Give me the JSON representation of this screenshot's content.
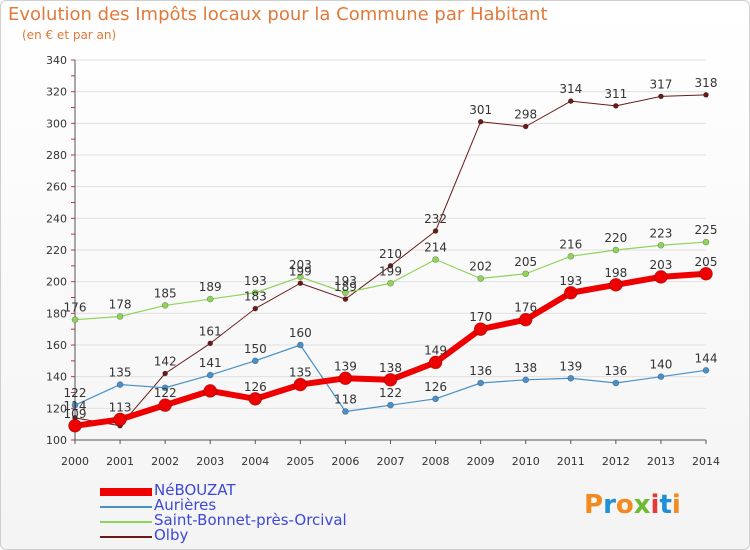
{
  "header": {
    "title": "Evolution des Impôts locaux pour la Commune par Habitant",
    "subtitle": "(en € et par an)"
  },
  "colors": {
    "title": "#e07a3a",
    "axis_text": "#333333",
    "grid": "#e0e0e0",
    "tick_red": "#cc3333",
    "legend_text": "#3d49d6"
  },
  "logo": {
    "text": "Proxiti",
    "letter_colors": [
      "#f28a1e",
      "#1f8fd6",
      "#f28a1e",
      "#6cbc2f",
      "#e53935",
      "#1f8fd6",
      "#f28a1e"
    ]
  },
  "chart_data": {
    "type": "line",
    "title": "Evolution des Impôts locaux pour la Commune par Habitant",
    "subtitle": "(en € et par an)",
    "x": [
      "2000",
      "2001",
      "2002",
      "2003",
      "2004",
      "2005",
      "2006",
      "2007",
      "2008",
      "2009",
      "2010",
      "2011",
      "2012",
      "2013",
      "2014"
    ],
    "ylim": [
      100,
      340
    ],
    "yticks": [
      100,
      120,
      140,
      160,
      180,
      200,
      220,
      240,
      260,
      280,
      300,
      320,
      340
    ],
    "grid": "horizontal",
    "legend_position": "bottom-left",
    "series": [
      {
        "name": "Olby",
        "color": "#6b1a1a",
        "width": 1,
        "marker": 2.5,
        "values": [
          114,
          109,
          142,
          161,
          183,
          199,
          189,
          210,
          232,
          301,
          298,
          314,
          311,
          317,
          318
        ]
      },
      {
        "name": "Saint-Bonnet-près-Orcival",
        "color": "#8fd45a",
        "width": 1.2,
        "marker": 3,
        "values": [
          176,
          178,
          185,
          189,
          193,
          203,
          193,
          199,
          214,
          202,
          205,
          216,
          220,
          223,
          225
        ]
      },
      {
        "name": "Aurières",
        "color": "#4a90c8",
        "width": 1.2,
        "marker": 3,
        "values": [
          122,
          135,
          133,
          141,
          150,
          160,
          118,
          122,
          126,
          136,
          138,
          139,
          136,
          140,
          144
        ]
      },
      {
        "name": "NéBOUZAT",
        "color": "#ee0000",
        "width": 6,
        "marker": 6.5,
        "values": [
          109,
          113,
          122,
          131,
          126,
          135,
          139,
          138,
          149,
          170,
          176,
          193,
          198,
          203,
          205
        ]
      }
    ],
    "data_labels": [
      {
        "series": "Olby",
        "labels": [
          "114",
          "",
          "142",
          "161",
          "183",
          "199",
          "189",
          "210",
          "232",
          "301",
          "298",
          "314",
          "311",
          "317",
          "318"
        ]
      },
      {
        "series": "Saint-Bonnet-près-Orcival",
        "labels": [
          "176",
          "178",
          "185",
          "189",
          "193",
          "203",
          "193",
          "199",
          "214",
          "202",
          "205",
          "216",
          "220",
          "223",
          "225"
        ]
      },
      {
        "series": "Aurières",
        "labels": [
          "122",
          "135",
          "",
          "141",
          "150",
          "160",
          "118",
          "122",
          "126",
          "136",
          "138",
          "139",
          "136",
          "140",
          "144"
        ]
      },
      {
        "series": "NéBOUZAT",
        "labels": [
          "109",
          "113",
          "122",
          "",
          "126",
          "135",
          "139",
          "138",
          "149",
          "170",
          "176",
          "193",
          "198",
          "203",
          "205"
        ]
      }
    ]
  },
  "legend": [
    {
      "label": "NéBOUZAT",
      "color": "#ee0000",
      "thickness": 8
    },
    {
      "label": "Aurières",
      "color": "#4a90c8",
      "thickness": 2
    },
    {
      "label": "Saint-Bonnet-près-Orcival",
      "color": "#8fd45a",
      "thickness": 2
    },
    {
      "label": "Olby",
      "color": "#6b1a1a",
      "thickness": 2
    }
  ]
}
